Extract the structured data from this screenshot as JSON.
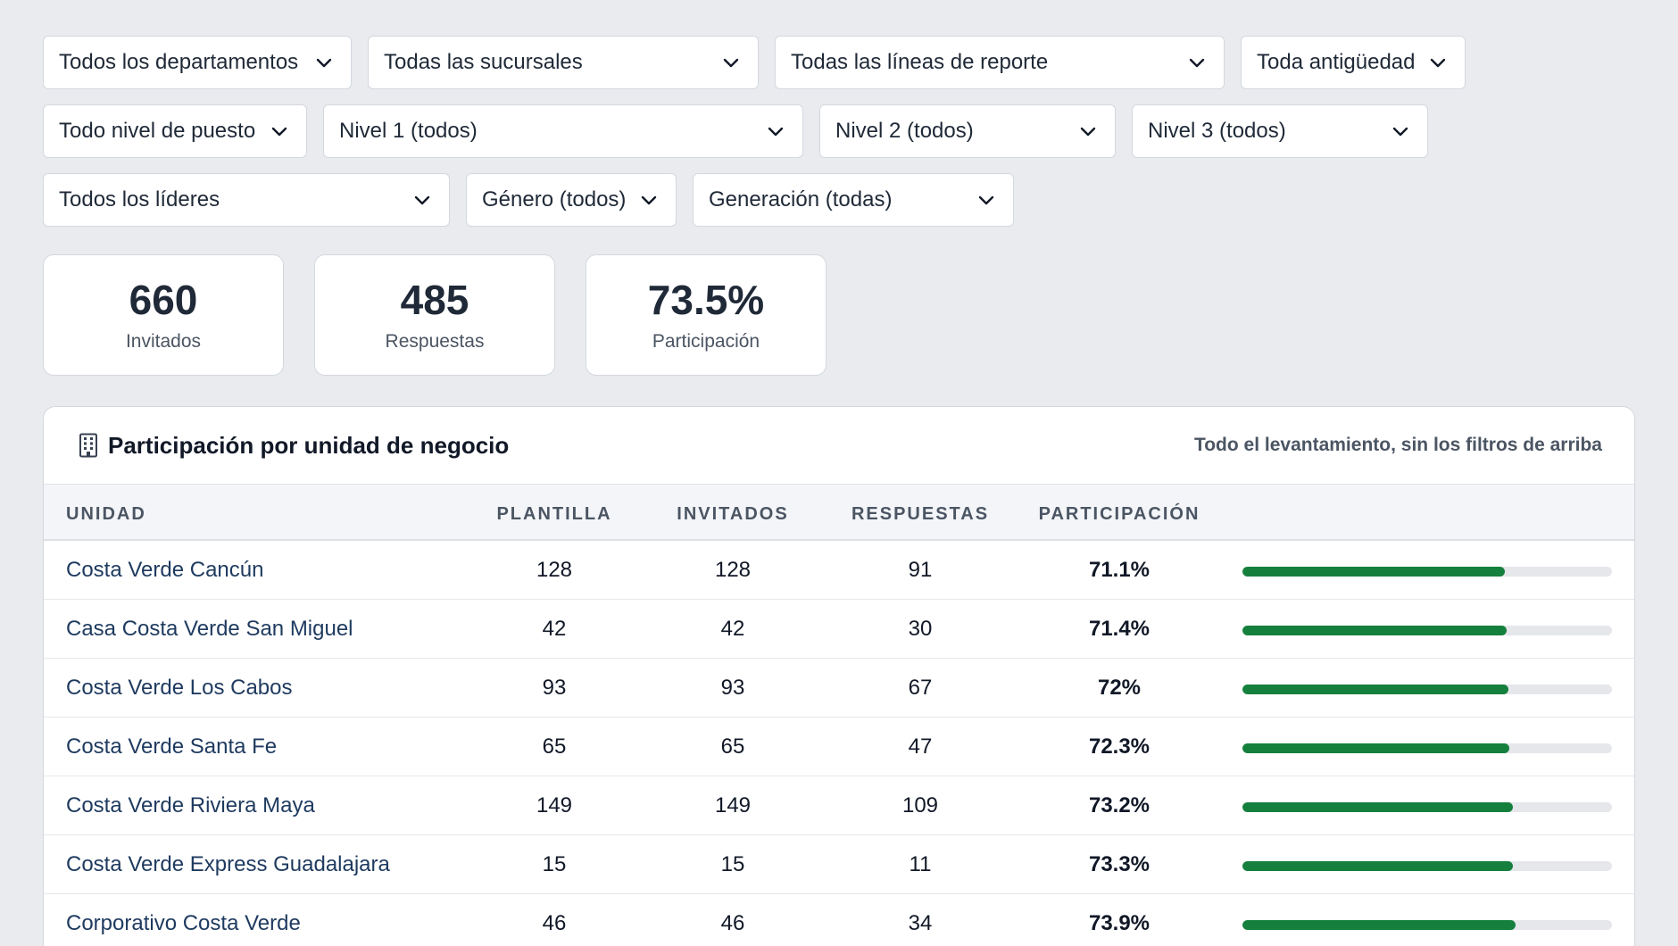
{
  "filters": {
    "row1": [
      {
        "label": "Todos los departamentos",
        "width": 346
      },
      {
        "label": "Todas las sucursales",
        "width": 438
      },
      {
        "label": "Todas las líneas de reporte",
        "width": 504
      },
      {
        "label": "Toda antigüedad",
        "width": 252
      }
    ],
    "row2": [
      {
        "label": "Todo nivel de puesto",
        "width": 296
      },
      {
        "label": "Nivel 1 (todos)",
        "width": 538
      },
      {
        "label": "Nivel 2 (todos)",
        "width": 332
      },
      {
        "label": "Nivel 3 (todos)",
        "width": 332
      }
    ],
    "row3": [
      {
        "label": "Todos los líderes",
        "width": 456
      },
      {
        "label": "Género (todos)",
        "width": 236
      },
      {
        "label": "Generación (todas)",
        "width": 360
      }
    ]
  },
  "kpis": [
    {
      "value": "660",
      "label": "Invitados"
    },
    {
      "value": "485",
      "label": "Respuestas"
    },
    {
      "value": "73.5%",
      "label": "Participación"
    }
  ],
  "panel": {
    "title": "Participación por unidad de negocio",
    "note": "Todo el levantamiento, sin los filtros de arriba",
    "icon": "building-icon",
    "columns": {
      "unit": "UNIDAD",
      "headcount": "PLANTILLA",
      "invited": "INVITADOS",
      "responses": "RESPUESTAS",
      "participation": "PARTICIPACIÓN"
    },
    "rows": [
      {
        "unit": "Costa Verde Cancún",
        "headcount": "128",
        "invited": "128",
        "responses": "91",
        "participation": "71.1%",
        "rate": 71.1
      },
      {
        "unit": "Casa Costa Verde San Miguel",
        "headcount": "42",
        "invited": "42",
        "responses": "30",
        "participation": "71.4%",
        "rate": 71.4
      },
      {
        "unit": "Costa Verde Los Cabos",
        "headcount": "93",
        "invited": "93",
        "responses": "67",
        "participation": "72%",
        "rate": 72.0
      },
      {
        "unit": "Costa Verde Santa Fe",
        "headcount": "65",
        "invited": "65",
        "responses": "47",
        "participation": "72.3%",
        "rate": 72.3
      },
      {
        "unit": "Costa Verde Riviera Maya",
        "headcount": "149",
        "invited": "149",
        "responses": "109",
        "participation": "73.2%",
        "rate": 73.2
      },
      {
        "unit": "Costa Verde Express Guadalajara",
        "headcount": "15",
        "invited": "15",
        "responses": "11",
        "participation": "73.3%",
        "rate": 73.3
      },
      {
        "unit": "Corporativo Costa Verde",
        "headcount": "46",
        "invited": "46",
        "responses": "34",
        "participation": "73.9%",
        "rate": 73.9
      }
    ]
  },
  "colors": {
    "bar_fill": "#15803d",
    "bar_track": "#e5e7eb"
  }
}
